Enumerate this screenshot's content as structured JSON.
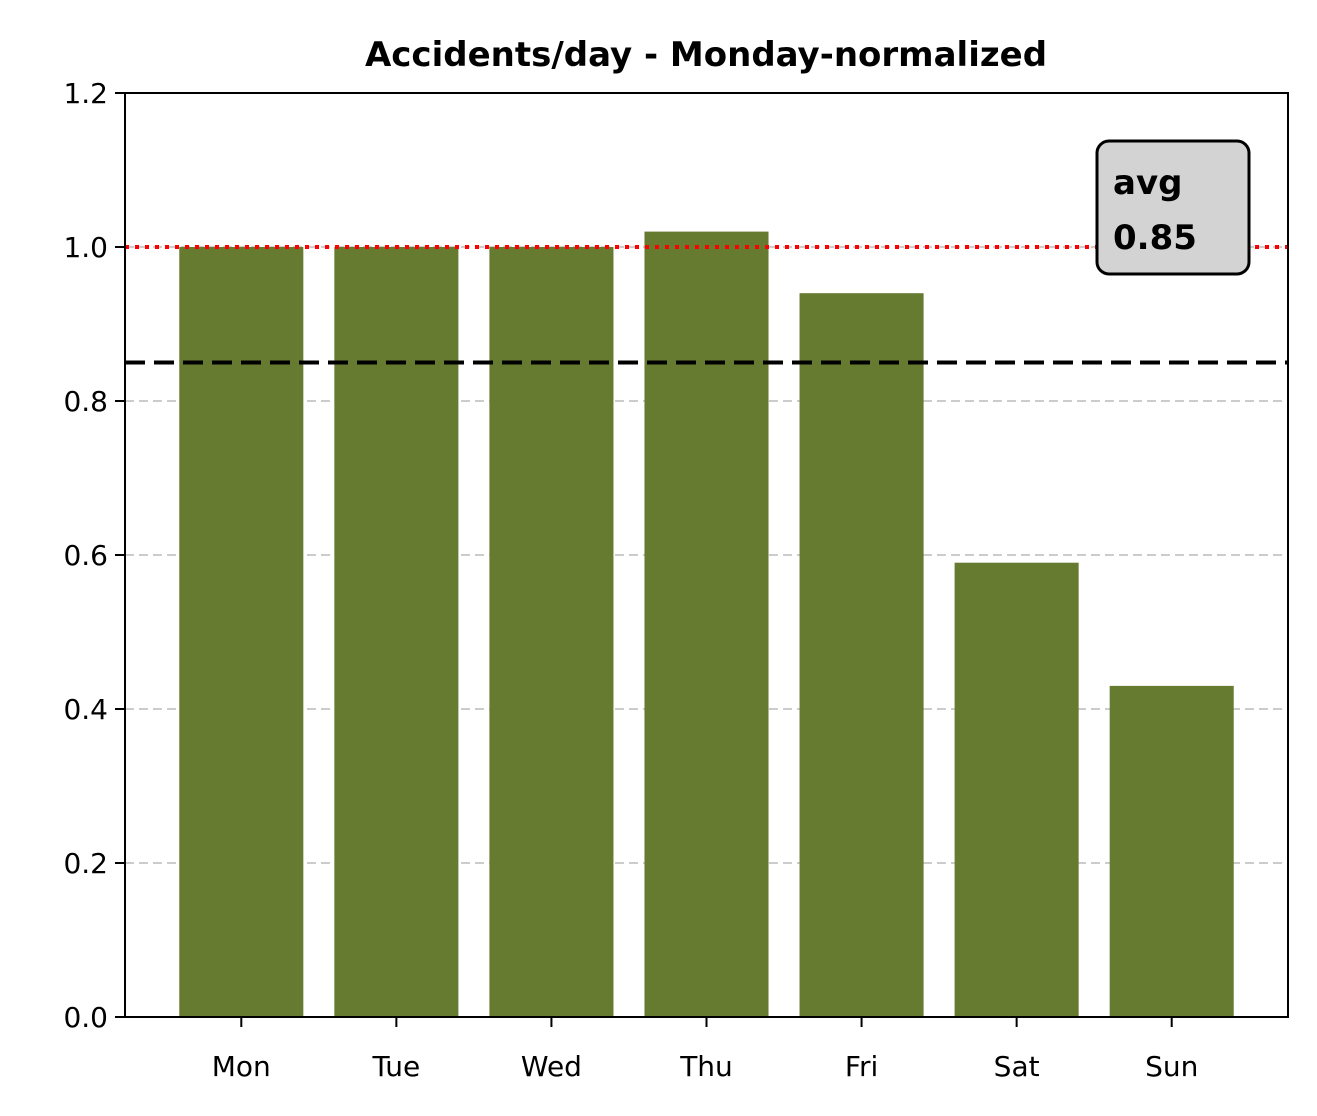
{
  "chart_data": {
    "type": "bar",
    "title": "Accidents/day - Monday-normalized",
    "xlabel": "",
    "ylabel": "",
    "categories": [
      "Mon",
      "Tue",
      "Wed",
      "Thu",
      "Fri",
      "Sat",
      "Sun"
    ],
    "values": [
      1.0,
      1.0,
      1.0,
      1.02,
      0.94,
      0.59,
      0.43
    ],
    "ylim": [
      0,
      1.2
    ],
    "yticks": [
      "0.0",
      "0.2",
      "0.4",
      "0.6",
      "0.8",
      "1.0",
      "1.2"
    ],
    "ytick_values": [
      0,
      0.2,
      0.4,
      0.6,
      0.8,
      1.0,
      1.2
    ],
    "grid": "y-dashed",
    "reference_line": {
      "value": 1.0,
      "style": "dotted",
      "color": "#ff0000"
    },
    "average_line": {
      "value": 0.85,
      "style": "dashed",
      "color": "#000000"
    },
    "annotation": {
      "line1": "avg",
      "line2": "0.85",
      "placement": "top-right"
    },
    "colors": {
      "bar": "#667a30",
      "grid": "#cccccc",
      "annotation_bg": "#d3d3d3"
    }
  }
}
